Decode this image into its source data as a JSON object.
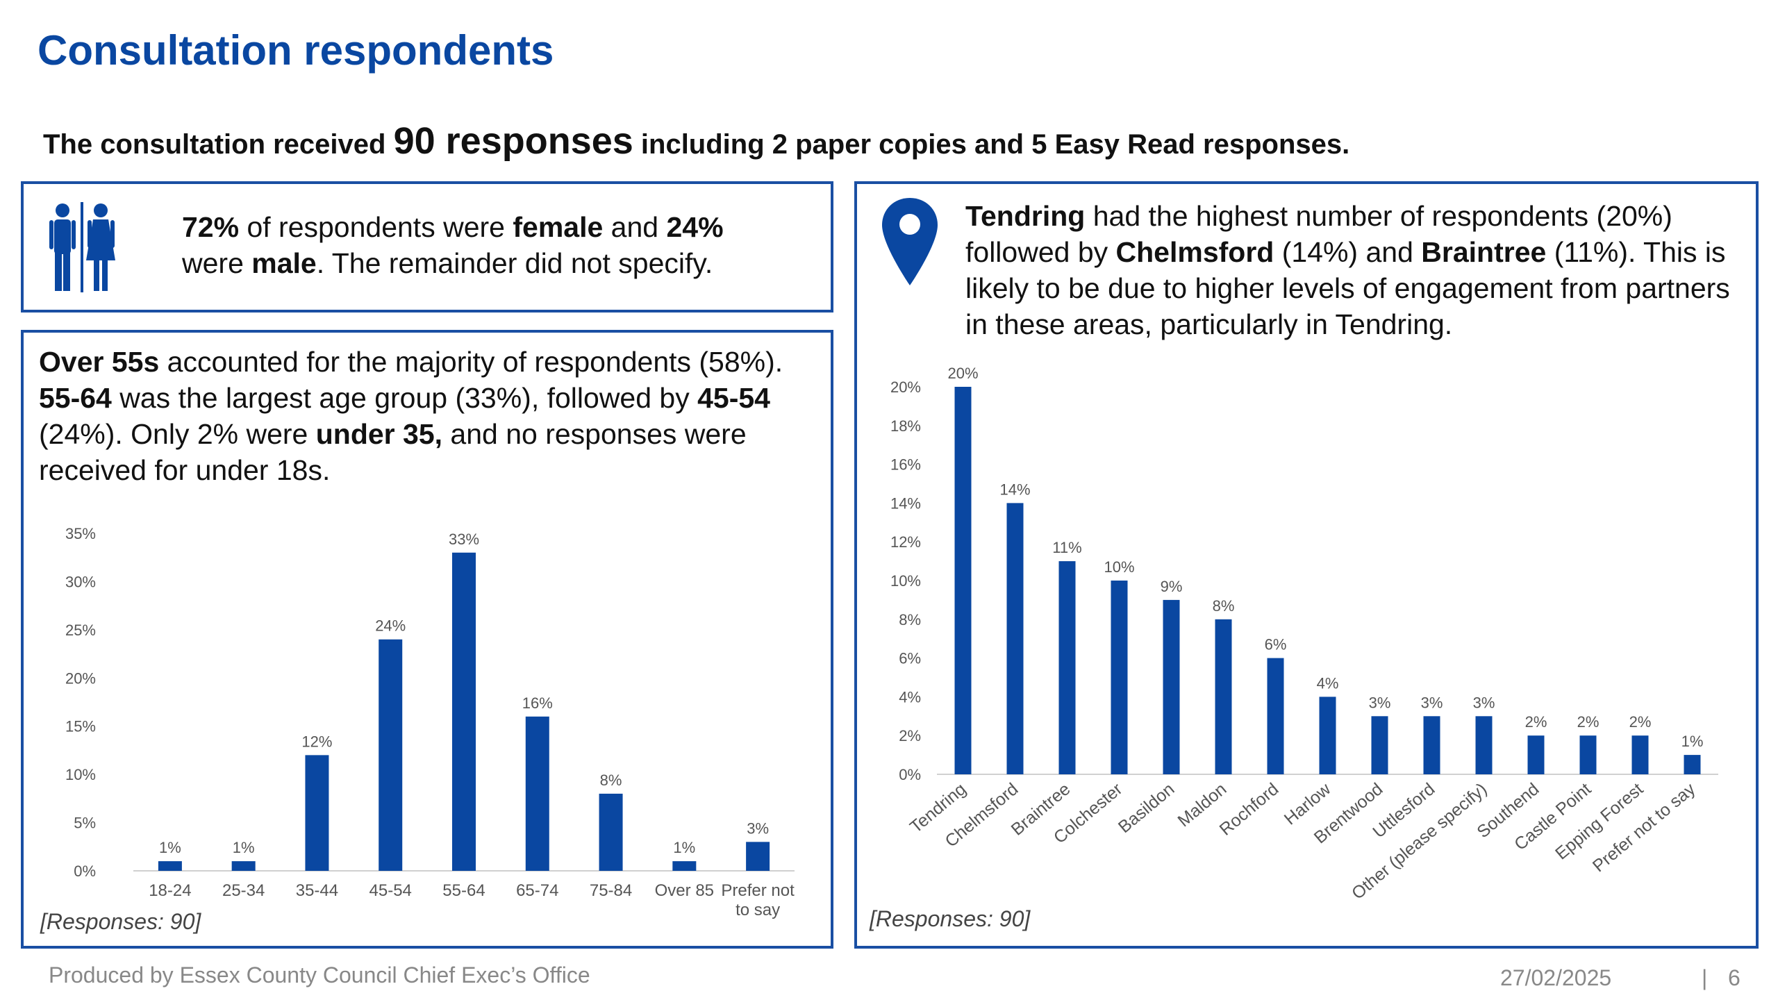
{
  "title": "Consultation respondents",
  "subtitle": {
    "pre": "The consultation received ",
    "highlight": "90 responses",
    "post": " including 2 paper copies and 5 Easy Read responses."
  },
  "gender": {
    "icon": "male-female-icon",
    "pct_female": "72%",
    "t1": " of respondents were ",
    "female_label": "female",
    "t2": " and ",
    "pct_male": "24%",
    "t3": "were ",
    "male_label": "male",
    "t4": ". The remainder did not specify."
  },
  "age": {
    "b1": "Over 55s",
    "t1": " accounted for the majority of respondents (58%).",
    "b2": "55-64",
    "t2": " was the largest age group (33%), followed by ",
    "b3": "45-54",
    "t3": "(24%). Only 2% were ",
    "b4": "under 35,",
    "t4": " and no responses were received for under 18s.",
    "note": "[Responses: 90]"
  },
  "district": {
    "icon": "location-pin-icon",
    "b1": "Tendring",
    "t1": " had the highest number of respondents (20%) followed by ",
    "b2": "Chelmsford",
    "t2": " (14%) and ",
    "b3": "Braintree",
    "t3": " (11%). This is likely to be due to higher levels of engagement from partners in these areas, particularly in Tendring.",
    "note": "[Responses: 90]"
  },
  "chart_data": [
    {
      "type": "bar",
      "categories": [
        "18-24",
        "25-34",
        "35-44",
        "45-54",
        "55-64",
        "65-74",
        "75-84",
        "Over 85",
        "Prefer not to say"
      ],
      "values": [
        1,
        1,
        12,
        24,
        33,
        16,
        8,
        1,
        3
      ],
      "data_labels": [
        "1%",
        "1%",
        "12%",
        "24%",
        "33%",
        "16%",
        "8%",
        "1%",
        "3%"
      ],
      "ylim": [
        0,
        35
      ],
      "yticks": [
        "0%",
        "5%",
        "10%",
        "15%",
        "20%",
        "25%",
        "30%",
        "35%"
      ],
      "grid": false,
      "color": "#0a47a1"
    },
    {
      "type": "bar",
      "categories": [
        "Tendring",
        "Chelmsford",
        "Braintree",
        "Colchester",
        "Basildon",
        "Maldon",
        "Rochford",
        "Harlow",
        "Brentwood",
        "Uttlesford",
        "Other (please specify)",
        "Southend",
        "Castle Point",
        "Epping Forest",
        "Prefer not to say"
      ],
      "values": [
        20,
        14,
        11,
        10,
        9,
        8,
        6,
        4,
        3,
        3,
        3,
        2,
        2,
        2,
        1
      ],
      "data_labels": [
        "20%",
        "14%",
        "11%",
        "10%",
        "9%",
        "8%",
        "6%",
        "4%",
        "3%",
        "3%",
        "3%",
        "2%",
        "2%",
        "2%",
        "1%"
      ],
      "ylim": [
        0,
        20
      ],
      "yticks": [
        "0%",
        "2%",
        "4%",
        "6%",
        "8%",
        "10%",
        "12%",
        "14%",
        "16%",
        "18%",
        "20%"
      ],
      "grid": false,
      "color": "#0a47a1"
    }
  ],
  "footer": {
    "left": "Produced by Essex County Council Chief Exec’s Office",
    "date": "27/02/2025",
    "sep": "|",
    "page": "6"
  }
}
